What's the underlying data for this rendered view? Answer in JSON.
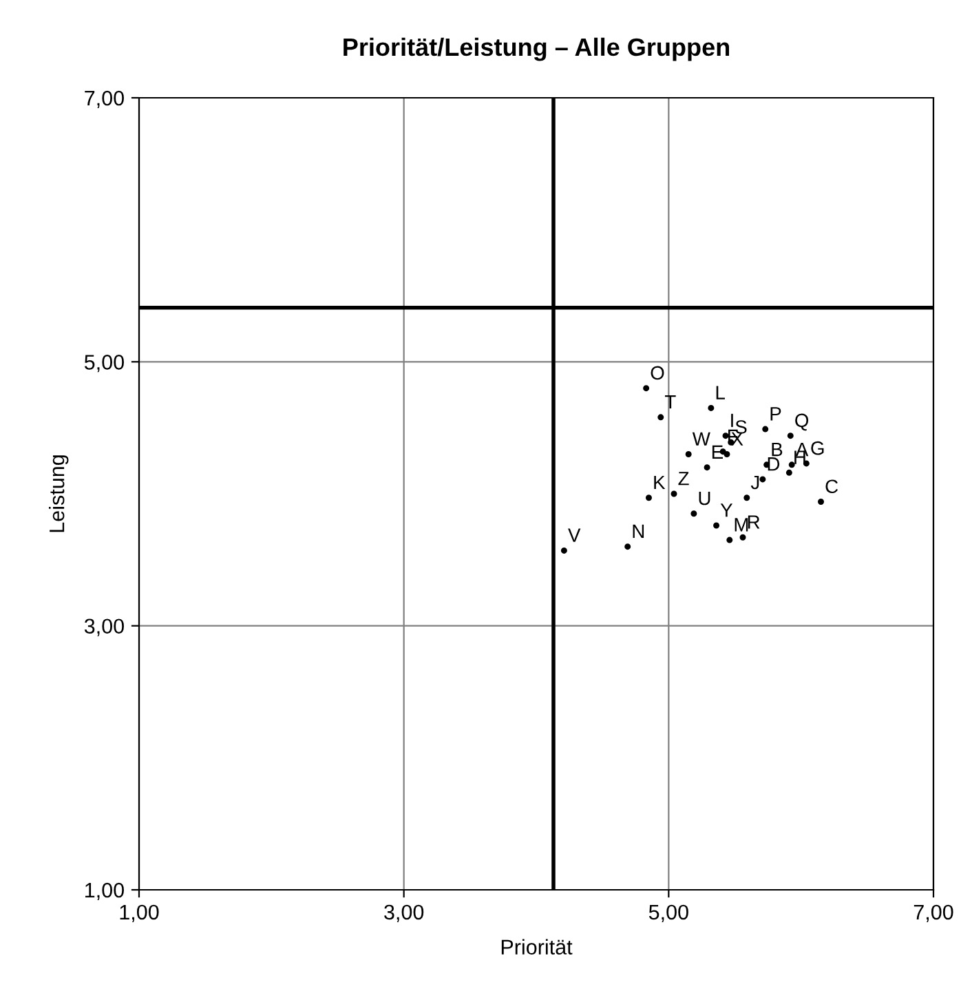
{
  "chart_data": {
    "type": "scatter",
    "title": "Priorität/Leistung – Alle Gruppen",
    "xlabel": "Priorität",
    "ylabel": "Leistung",
    "xlim": [
      1,
      7
    ],
    "ylim": [
      1,
      7
    ],
    "xticks": [
      {
        "value": 1,
        "label": "1,00"
      },
      {
        "value": 3,
        "label": "3,00"
      },
      {
        "value": 5,
        "label": "5,00"
      },
      {
        "value": 7,
        "label": "7,00"
      }
    ],
    "yticks": [
      {
        "value": 1,
        "label": "1,00"
      },
      {
        "value": 3,
        "label": "3,00"
      },
      {
        "value": 5,
        "label": "5,00"
      },
      {
        "value": 7,
        "label": "7,00"
      }
    ],
    "grid": true,
    "marker": "circle",
    "ref_lines": [
      {
        "axis": "x",
        "value": 4.13,
        "color": "#000000"
      },
      {
        "axis": "y",
        "value": 5.41,
        "color": "#000000"
      }
    ],
    "series": [
      {
        "color": "#000000",
        "x": [
          4.83,
          4.94,
          5.32,
          5.43,
          5.47,
          5.73,
          5.92,
          5.15,
          5.41,
          5.44,
          5.29,
          5.74,
          5.93,
          6.04,
          5.91,
          5.71,
          5.59,
          6.15,
          4.85,
          5.04,
          5.19,
          5.36,
          5.46,
          5.56,
          4.21,
          4.69
        ],
        "values": [
          4.8,
          4.58,
          4.65,
          4.44,
          4.39,
          4.49,
          4.44,
          4.3,
          4.32,
          4.3,
          4.2,
          4.22,
          4.22,
          4.23,
          4.16,
          4.11,
          3.97,
          3.94,
          3.97,
          4.0,
          3.85,
          3.76,
          3.65,
          3.67,
          3.57,
          3.6
        ],
        "value_labels": [
          "O",
          "T",
          "L",
          "I",
          "S",
          "P",
          "Q",
          "W",
          "F",
          "X",
          "E",
          "B",
          "A",
          "G",
          "H",
          "D",
          "J",
          "C",
          "K",
          "Z",
          "U",
          "Y",
          "M",
          "R",
          "V",
          "N"
        ]
      }
    ]
  }
}
